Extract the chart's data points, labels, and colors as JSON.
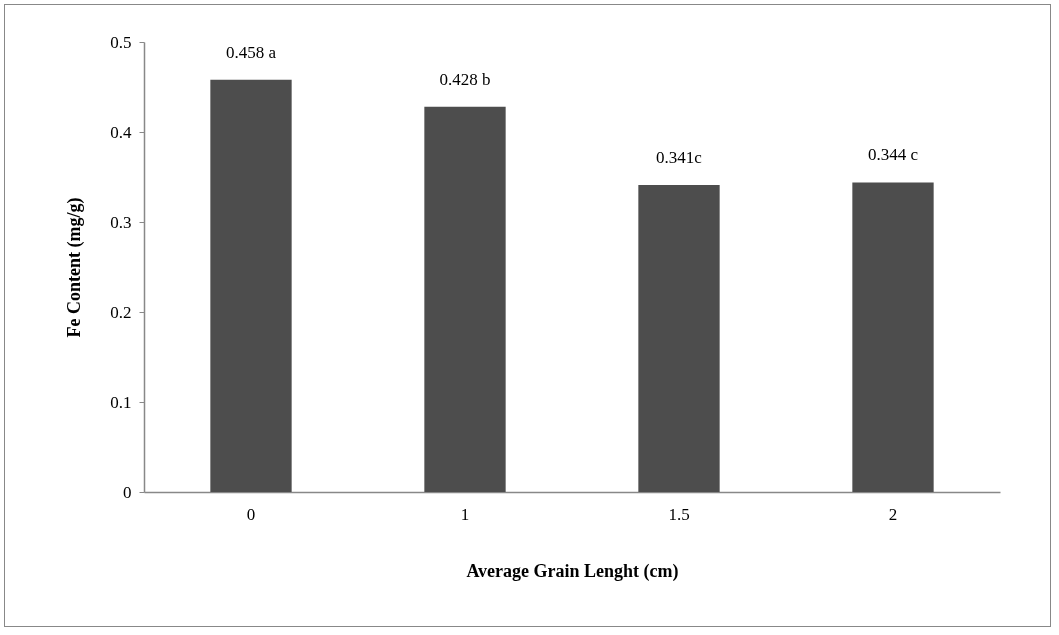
{
  "chart_data": {
    "type": "bar",
    "xlabel": "Average Grain Lenght (cm)",
    "ylabel": "Fe Content  (mg/g)",
    "categories": [
      "0",
      "1",
      "1.5",
      "2"
    ],
    "values": [
      0.458,
      0.428,
      0.341,
      0.344
    ],
    "value_labels": [
      "0.458 a",
      "0.428 b",
      "0.341c",
      "0.344 c"
    ],
    "color": "#4d4d4d",
    "ylim": [
      0,
      0.5
    ],
    "yticks": [
      0,
      0.1,
      0.2,
      0.3,
      0.4,
      0.5
    ],
    "grid": false
  }
}
